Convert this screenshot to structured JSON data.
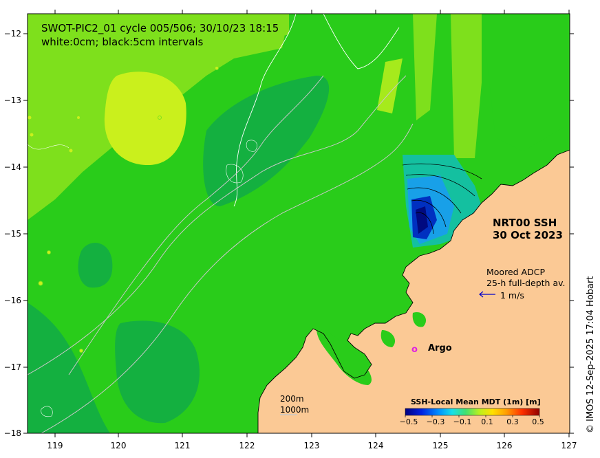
{
  "title": {
    "line1": "SWOT-PIC2_01 cycle 005/506; 30/10/23 18:15",
    "line2": "white:0cm; black:5cm intervals"
  },
  "nrt_label": {
    "line1": "NRT00 SSH",
    "line2": "30 Oct 2023"
  },
  "adcp_legend": {
    "line1": "Moored ADCP",
    "line2": "25-h full-depth av.",
    "speed_label": "1 m/s"
  },
  "argo_legend": {
    "symbol": "o",
    "label": "Argo",
    "color": "#e020e0"
  },
  "depth_legend": {
    "label_200": "200m",
    "label_1000": "1000m"
  },
  "colorbar": {
    "title": "SSH-Local Mean MDT (1m) [m]",
    "tick_labels": [
      "−0.5",
      "−0.3",
      "−0.1",
      "0.1",
      "0.3",
      "0.5"
    ],
    "range": [
      -0.5,
      0.5
    ]
  },
  "credit": "© IMOS 12-Sep-2025 17:04 Hobart",
  "axes": {
    "x_ticks": [
      "119",
      "120",
      "121",
      "122",
      "123",
      "124",
      "125",
      "126",
      "127"
    ],
    "y_ticks": [
      "−12",
      "−13",
      "−14",
      "−15",
      "−16",
      "−17",
      "−18"
    ],
    "lon_range": [
      118.6,
      127.0
    ],
    "lat_range": [
      -18.0,
      -11.7
    ]
  },
  "colors": {
    "land": "#fbc995",
    "ocean_base": "#29cc1a",
    "ocean_high": "#caf01c",
    "ocean_mid": "#7ee01c",
    "ocean_low": "#14b040",
    "ocean_lowest": "#12a860"
  }
}
